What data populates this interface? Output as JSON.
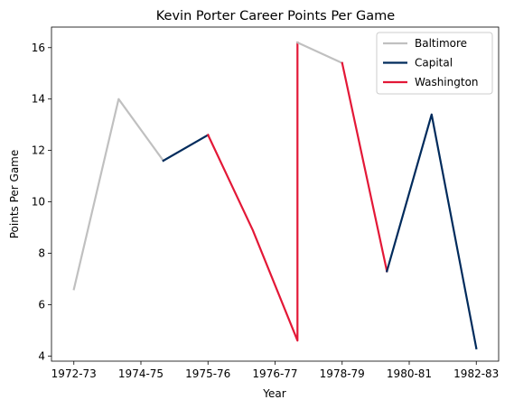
{
  "chart_data": {
    "type": "line",
    "title": "Kevin Porter  Career Points Per Game",
    "xlabel": "Year",
    "ylabel": "Points Per Game",
    "x_ticks": [
      "1972-73",
      "1974-75",
      "1975-76",
      "1976-77",
      "1978-79",
      "1980-81",
      "1982-83"
    ],
    "y_ticks": [
      4,
      6,
      8,
      10,
      12,
      14,
      16
    ],
    "ylim": [
      3.8,
      16.8
    ],
    "legend_position": "top-right",
    "grid": false,
    "series": [
      {
        "name": "Baltimore",
        "color": "#c0c0c0",
        "points": [
          {
            "x": 0,
            "y": 6.6
          },
          {
            "x": 1,
            "y": 14.0
          },
          {
            "x": 2,
            "y": 11.6
          }
        ]
      },
      {
        "name": "Capital",
        "color": "#002b5c",
        "points": [
          {
            "x": 2,
            "y": 11.6
          },
          {
            "x": 3,
            "y": 12.6
          }
        ]
      },
      {
        "name": "Washington",
        "color": "#e31837",
        "points": [
          {
            "x": 3,
            "y": 12.6
          },
          {
            "x": 4,
            "y": 8.9
          },
          {
            "x": 5,
            "y": 4.6
          },
          {
            "x": 5,
            "y": 16.2
          }
        ]
      },
      {
        "name": "Baltimore",
        "color": "#c0c0c0",
        "points": [
          {
            "x": 5,
            "y": 16.2
          },
          {
            "x": 6,
            "y": 15.4
          }
        ]
      },
      {
        "name": "Washington",
        "color": "#e31837",
        "points": [
          {
            "x": 6,
            "y": 15.4
          },
          {
            "x": 7,
            "y": 7.3
          }
        ]
      },
      {
        "name": "Capital",
        "color": "#002b5c",
        "points": [
          {
            "x": 7,
            "y": 7.3
          },
          {
            "x": 8,
            "y": 13.4
          },
          {
            "x": 9,
            "y": 4.3
          }
        ]
      }
    ],
    "legend": [
      {
        "name": "Baltimore",
        "color": "#c0c0c0"
      },
      {
        "name": "Capital",
        "color": "#002b5c"
      },
      {
        "name": "Washington",
        "color": "#e31837"
      }
    ]
  }
}
